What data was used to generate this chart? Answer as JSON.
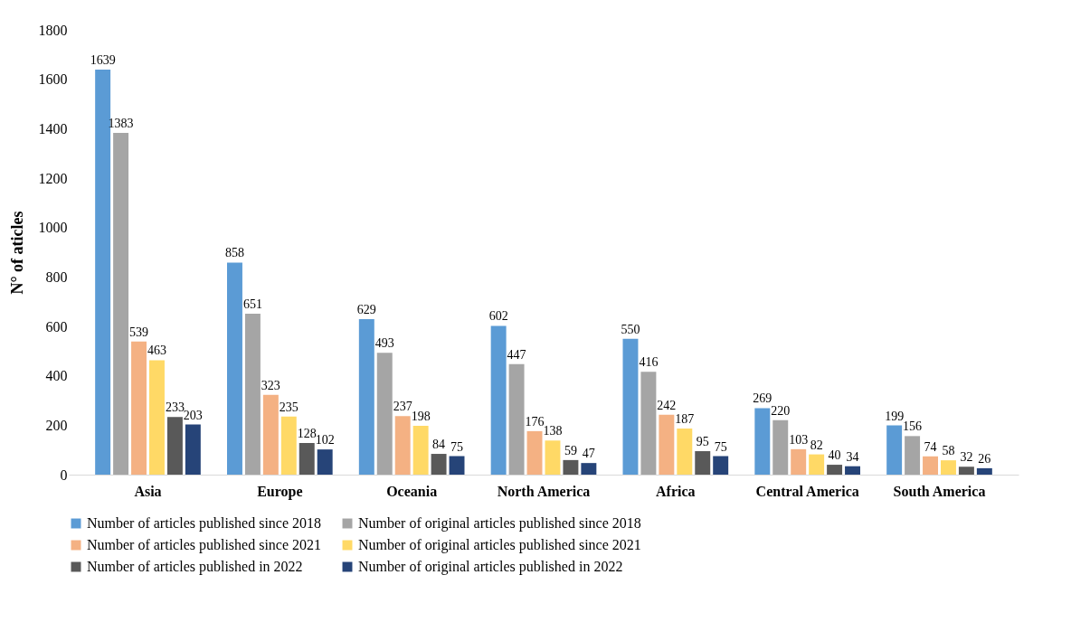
{
  "chart_data": {
    "type": "bar",
    "ylabel": "N° of aticles",
    "categories": [
      "Asia",
      "Europe",
      "Oceania",
      "North America",
      "Africa",
      "Central America",
      "South America"
    ],
    "series": [
      {
        "name": "Number of articles published since 2018",
        "color": "#5b9bd5",
        "values": [
          1639,
          858,
          629,
          602,
          550,
          269,
          199
        ]
      },
      {
        "name": "Number of original articles published since 2018",
        "color": "#a5a5a5",
        "values": [
          1383,
          651,
          493,
          447,
          416,
          220,
          156
        ]
      },
      {
        "name": "Number of articles published since 2021",
        "color": "#f4b183",
        "values": [
          539,
          323,
          237,
          176,
          242,
          103,
          74
        ]
      },
      {
        "name": "Number of original articles published since 2021",
        "color": "#ffd966",
        "values": [
          463,
          235,
          198,
          138,
          187,
          82,
          58
        ]
      },
      {
        "name": "Number of articles published in 2022",
        "color": "#595959",
        "values": [
          233,
          128,
          84,
          59,
          95,
          40,
          32
        ]
      },
      {
        "name": "Number of original articles published in 2022",
        "color": "#264478",
        "values": [
          203,
          102,
          75,
          47,
          75,
          34,
          26
        ]
      }
    ],
    "ylim": [
      0,
      1800
    ],
    "yticks": [
      0,
      200,
      400,
      600,
      800,
      1000,
      1200,
      1400,
      1600,
      1800
    ],
    "grid": false,
    "legend": "bottom",
    "data_labels": true
  }
}
